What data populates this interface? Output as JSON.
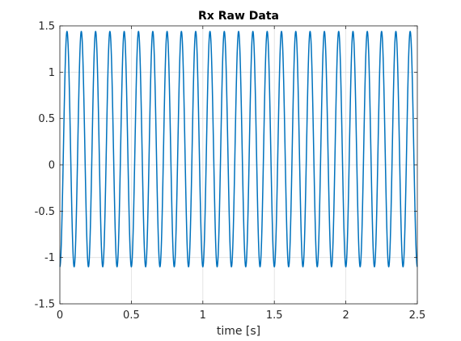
{
  "chart_data": {
    "type": "line",
    "title": "Rx Raw Data",
    "xlabel": "time [s]",
    "ylabel": "",
    "xlim": [
      0,
      2.5
    ],
    "ylim": [
      -1.5,
      1.5
    ],
    "xticks": [
      0,
      0.5,
      1,
      1.5,
      2,
      2.5
    ],
    "xtick_labels": [
      "0",
      "0.5",
      "1",
      "1.5",
      "2",
      "2.5"
    ],
    "yticks": [
      -1.5,
      -1,
      -0.5,
      0,
      0.5,
      1,
      1.5
    ],
    "ytick_labels": [
      "-1.5",
      "-1",
      "-0.5",
      "0",
      "0.5",
      "1",
      "1.5"
    ],
    "grid": true,
    "series": [
      {
        "color": "#0072BD",
        "function": "sine",
        "frequency_hz": 10,
        "offset": 0.17,
        "amplitude": 1.27,
        "max": 1.44,
        "min": -1.1
      }
    ]
  },
  "colors": {
    "grid": "#dfdfdf",
    "axis": "#262626",
    "background": "#ffffff"
  }
}
